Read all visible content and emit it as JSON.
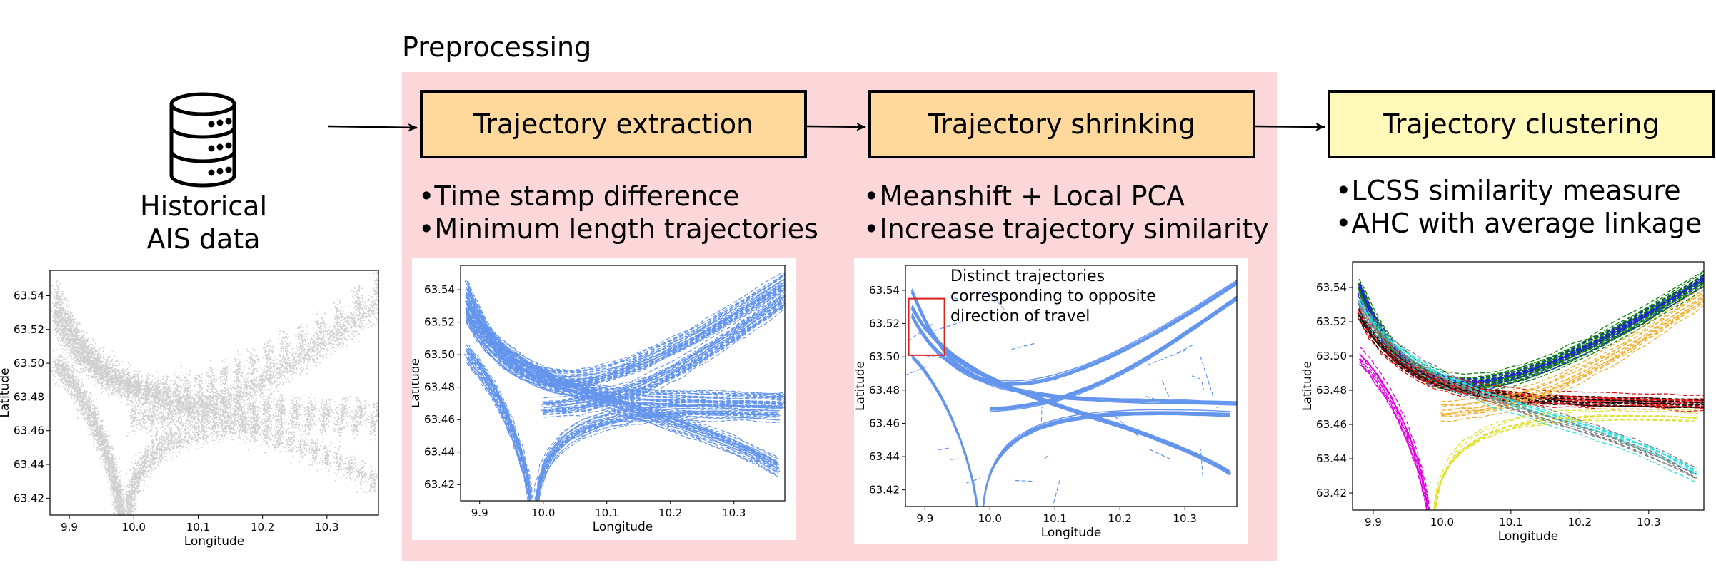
{
  "preprocessing_label": "Preprocessing",
  "source": {
    "line1": "Historical",
    "line2": "AIS data",
    "icon": "database-icon"
  },
  "stages": [
    {
      "title": "Trajectory extraction",
      "bullets": [
        "•Time stamp difference",
        "•Minimum length trajectories"
      ]
    },
    {
      "title": "Trajectory shrinking",
      "bullets": [
        "•Meanshift + Local PCA",
        "•Increase trajectory similarity"
      ]
    },
    {
      "title": "Trajectory clustering",
      "bullets": [
        "•LCSS similarity measure",
        "•AHC with average linkage"
      ]
    }
  ],
  "annotation": "Distinct trajectories\ncorresponding to opposite\ndirection of travel",
  "colors": {
    "preprocessing_bg": "#fcd7d9",
    "stage_orange": "#fed99b",
    "stage_yellow": "#fef9b8",
    "raw_points": "#cfcfcf",
    "trajectory": "#6495ed",
    "highlight_box": "#e0201b",
    "clusters": [
      "#0a800a",
      "#2020e0",
      "#e01010",
      "#101010",
      "#e000e0",
      "#f0b030",
      "#30e0e0",
      "#e0e030",
      "#808080"
    ]
  },
  "chart_data": [
    {
      "type": "scatter",
      "title": "",
      "xlabel": "Longitude",
      "ylabel": "Latitude",
      "xlim": [
        9.87,
        10.38
      ],
      "ylim": [
        63.41,
        63.555
      ],
      "x_ticks": [
        "9.9",
        "10.0",
        "10.1",
        "10.2",
        "10.3"
      ],
      "y_ticks": [
        "63.42",
        "63.44",
        "63.46",
        "63.48",
        "63.50",
        "63.52",
        "63.54"
      ],
      "series": [
        {
          "values": "raw AIS position points"
        }
      ]
    },
    {
      "type": "line",
      "title": "",
      "xlabel": "Longitude",
      "ylabel": "Latitude",
      "xlim": [
        9.87,
        10.38
      ],
      "ylim": [
        63.41,
        63.555
      ],
      "x_ticks": [
        "9.9",
        "10.0",
        "10.1",
        "10.2",
        "10.3"
      ],
      "y_ticks": [
        "63.42",
        "63.44",
        "63.46",
        "63.48",
        "63.50",
        "63.52",
        "63.54"
      ]
    },
    {
      "type": "line",
      "title": "",
      "xlabel": "Longitude",
      "ylabel": "Latitude",
      "xlim": [
        9.87,
        10.38
      ],
      "ylim": [
        63.41,
        63.555
      ],
      "x_ticks": [
        "9.9",
        "10.0",
        "10.1",
        "10.2",
        "10.3"
      ],
      "y_ticks": [
        "63.42",
        "63.44",
        "63.46",
        "63.48",
        "63.50",
        "63.52",
        "63.54"
      ]
    },
    {
      "type": "line",
      "title": "",
      "xlabel": "Longitude",
      "ylabel": "Latitude",
      "xlim": [
        9.87,
        10.38
      ],
      "ylim": [
        63.41,
        63.555
      ],
      "x_ticks": [
        "9.9",
        "10.0",
        "10.1",
        "10.2",
        "10.3"
      ],
      "y_ticks": [
        "63.42",
        "63.44",
        "63.46",
        "63.48",
        "63.50",
        "63.52",
        "63.54"
      ]
    }
  ]
}
